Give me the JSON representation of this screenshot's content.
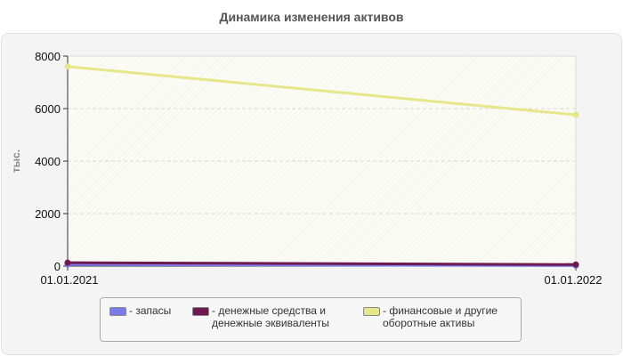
{
  "chart_data": {
    "type": "line",
    "title": "Динамика изменения активов",
    "ylabel": "тыс.",
    "xlabel": "",
    "categories": [
      "01.01.2021",
      "01.01.2022"
    ],
    "ylim": [
      0,
      8000
    ],
    "yticks": [
      0,
      2000,
      4000,
      6000,
      8000
    ],
    "grid": true,
    "legend_position": "bottom",
    "series": [
      {
        "name": "- запасы",
        "values": [
          60,
          20
        ],
        "color": "#7b7be8"
      },
      {
        "name": "- денежные средства и\nденежные эквиваленты",
        "values": [
          130,
          60
        ],
        "color": "#6e1a50"
      },
      {
        "name": "- финансовые и другие\nоборотные активы",
        "values": [
          7600,
          5760
        ],
        "color": "#e6e68a"
      }
    ]
  }
}
